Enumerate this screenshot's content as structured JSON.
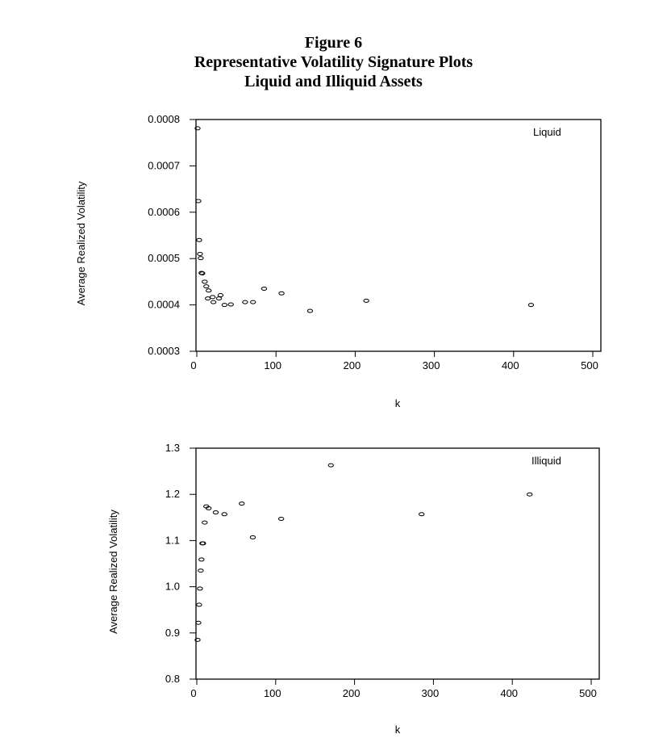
{
  "figure": {
    "title_lines": [
      "Figure 6",
      "Representative Volatility Signature Plots",
      "Liquid and Illiquid Assets"
    ]
  },
  "chart_data": [
    {
      "type": "scatter",
      "title": "Liquid",
      "xlabel": "k",
      "ylabel": "Average Realized Volatility",
      "xlim": [
        0,
        500
      ],
      "ylim": [
        0.0003,
        0.0008
      ],
      "xticks": [
        0,
        100,
        200,
        300,
        400,
        500
      ],
      "yticks": [
        0.0003,
        0.0004,
        0.0005,
        0.0006,
        0.0007,
        0.0008
      ],
      "ytick_labels": [
        "0.0003",
        "0.0004",
        "0.0005",
        "0.0006",
        "0.0007",
        "0.0008"
      ],
      "legend_position": "top-right",
      "x": [
        1,
        2,
        3,
        4,
        5,
        6,
        7,
        10,
        12,
        15,
        14,
        20,
        21,
        28,
        30,
        35,
        43,
        61,
        71,
        85,
        107,
        143,
        214,
        422
      ],
      "y": [
        0.000781,
        0.000624,
        0.00054,
        0.00051,
        0.000501,
        0.000469,
        0.000468,
        0.00045,
        0.00044,
        0.000431,
        0.000414,
        0.000417,
        0.000406,
        0.000414,
        0.000421,
        0.0004,
        0.000401,
        0.000406,
        0.000406,
        0.000435,
        0.000425,
        0.000387,
        0.000409,
        0.0004
      ]
    },
    {
      "type": "scatter",
      "title": "Illiquid",
      "xlabel": "k",
      "ylabel": "Average Realized Volatility",
      "xlim": [
        0,
        500
      ],
      "ylim": [
        0.8,
        1.3
      ],
      "xticks": [
        0,
        100,
        200,
        300,
        400,
        500
      ],
      "yticks": [
        0.8,
        0.9,
        1.0,
        1.1,
        1.2,
        1.3
      ],
      "ytick_labels": [
        "0.8",
        "0.9",
        "1.0",
        "1.1",
        "1.2",
        "1.3"
      ],
      "legend_position": "top-right",
      "x": [
        1,
        2,
        3,
        4,
        5,
        6,
        7,
        8,
        10,
        12,
        15,
        24,
        35,
        57,
        71,
        107,
        170,
        285,
        422
      ],
      "y": [
        0.885,
        0.922,
        0.961,
        0.996,
        1.035,
        1.059,
        1.094,
        1.094,
        1.139,
        1.174,
        1.17,
        1.161,
        1.157,
        1.18,
        1.107,
        1.147,
        1.263,
        1.157,
        1.2
      ]
    }
  ]
}
